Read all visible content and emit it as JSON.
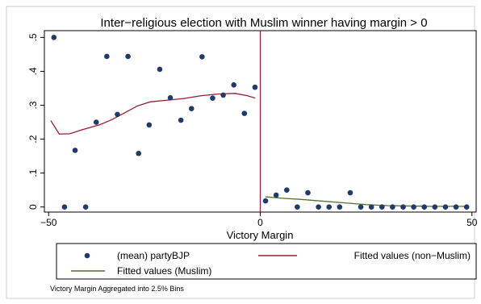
{
  "chart_data": {
    "type": "scatter",
    "title": "Inter−religious election with Muslim winner having margin > 0",
    "xlabel": "Victory Margin",
    "ylabel": "",
    "xlim": [
      -51,
      51
    ],
    "ylim": [
      -0.015,
      0.52
    ],
    "x_ticks": [
      -50,
      0,
      50
    ],
    "x_tick_labels": [
      "−50",
      "0",
      "50"
    ],
    "y_ticks": [
      0,
      0.1,
      0.2,
      0.3,
      0.4,
      0.5
    ],
    "y_tick_labels": [
      "0",
      ".1",
      ".2",
      ".3",
      ".4",
      ".5"
    ],
    "cutoff_line": 0,
    "grid": false,
    "legend_position": "bottom",
    "series": [
      {
        "name": "(mean) partyBJP",
        "kind": "scatter",
        "color": "#1f3a6b",
        "x": [
          -48.75,
          -46.25,
          -43.75,
          -41.25,
          -38.75,
          -36.25,
          -33.75,
          -31.25,
          -28.75,
          -26.25,
          -23.75,
          -21.25,
          -18.75,
          -16.25,
          -13.75,
          -11.25,
          -8.75,
          -6.25,
          -3.75,
          -1.25,
          1.25,
          3.75,
          6.25,
          8.75,
          11.25,
          13.75,
          16.25,
          18.75,
          21.25,
          23.75,
          26.25,
          28.75,
          31.25,
          33.75,
          36.25,
          38.75,
          41.25,
          43.75,
          46.25,
          48.75
        ],
        "y": [
          0.5,
          0.0,
          0.167,
          0.0,
          0.25,
          0.444,
          0.273,
          0.444,
          0.158,
          0.242,
          0.406,
          0.322,
          0.256,
          0.29,
          0.443,
          0.321,
          0.33,
          0.36,
          0.276,
          0.353,
          0.018,
          0.035,
          0.05,
          0.0,
          0.042,
          0.0,
          0.0,
          0.0,
          0.042,
          0.0,
          0.0,
          0.0,
          0.0,
          0.0,
          0.0,
          0.0,
          0.0,
          0.0,
          0.0,
          0.0
        ]
      },
      {
        "name": "Fitted values (non−Muslim)",
        "kind": "line",
        "color": "#9b1b30",
        "x": [
          -49.5,
          -47.5,
          -45,
          -42,
          -38,
          -35,
          -32,
          -29,
          -26,
          -22,
          -18,
          -14,
          -10,
          -6,
          -3,
          -1.2
        ],
        "y": [
          0.255,
          0.215,
          0.216,
          0.228,
          0.242,
          0.258,
          0.278,
          0.298,
          0.31,
          0.315,
          0.32,
          0.328,
          0.333,
          0.335,
          0.328,
          0.321
        ]
      },
      {
        "name": "Fitted values (Muslim)",
        "kind": "line",
        "color": "#5a6e2f",
        "x": [
          1.2,
          5,
          10,
          15,
          20,
          25,
          30,
          35,
          40,
          45,
          48.75
        ],
        "y": [
          0.03,
          0.026,
          0.022,
          0.017,
          0.012,
          0.007,
          0.004,
          0.003,
          0.002,
          0.002,
          0.002
        ]
      }
    ],
    "note": "Victory Margin Aggregated into 2.5% Bins"
  }
}
